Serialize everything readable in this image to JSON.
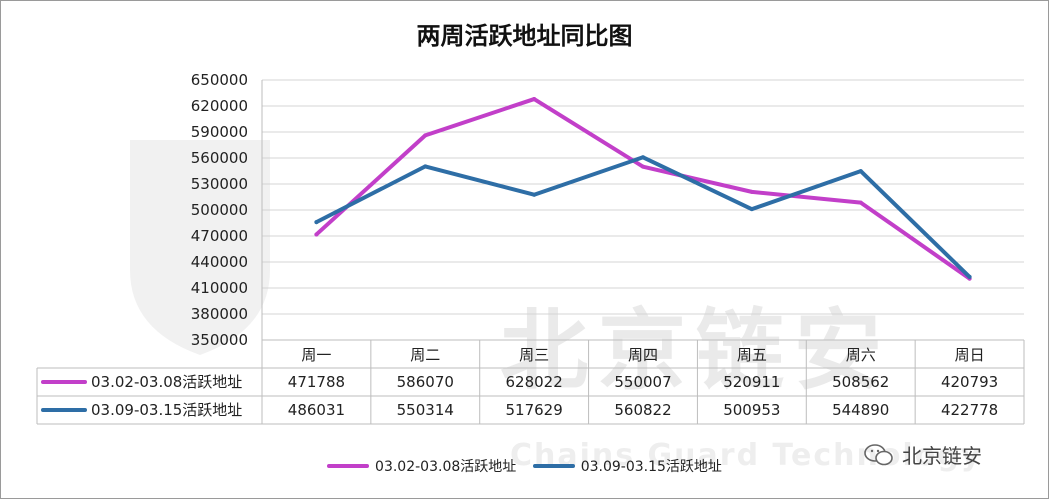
{
  "chart_data": {
    "type": "line",
    "title": "两周活跃地址同比图",
    "categories": [
      "周一",
      "周二",
      "周三",
      "周四",
      "周五",
      "周六",
      "周日"
    ],
    "ylim": [
      350000,
      650000
    ],
    "yticks": [
      "650000",
      "620000",
      "590000",
      "560000",
      "530000",
      "500000",
      "470000",
      "440000",
      "410000",
      "380000",
      "350000"
    ],
    "grid": true,
    "legend_position": "bottom",
    "series": [
      {
        "name": "03.02-03.08活跃地址",
        "color": "#c23fc9",
        "values": [
          471788,
          586070,
          628022,
          550007,
          520911,
          508562,
          420793
        ],
        "labels": [
          "471788",
          "586070",
          "628022",
          "550007",
          "520911",
          "508562",
          "420793"
        ]
      },
      {
        "name": "03.09-03.15活跃地址",
        "color": "#2e6ea6",
        "values": [
          486031,
          550314,
          517629,
          560822,
          500953,
          544890,
          422778
        ],
        "labels": [
          "486031",
          "550314",
          "517629",
          "560822",
          "500953",
          "544890",
          "422778"
        ]
      }
    ]
  },
  "watermark": {
    "text": "北京链安",
    "subtext": "Chains Guard Technology"
  },
  "brand": {
    "text": "北京链安",
    "icon": "wechat-icon"
  }
}
